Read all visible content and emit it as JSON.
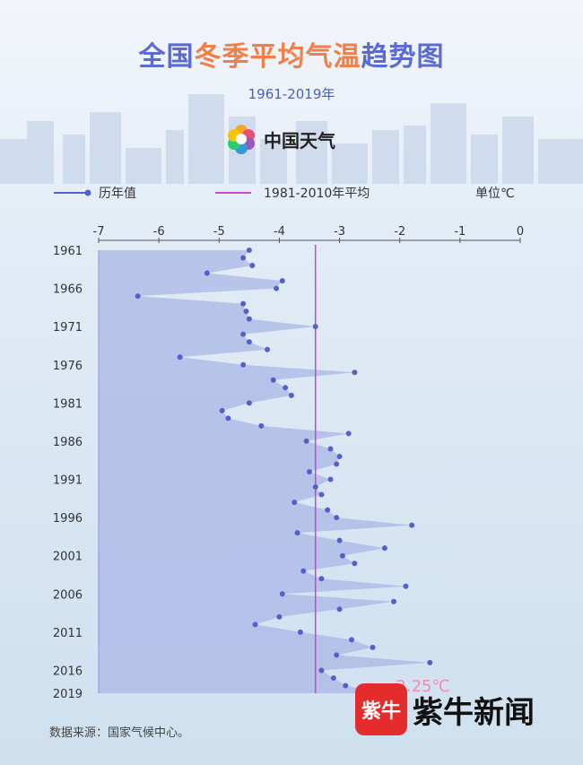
{
  "title": {
    "part1": "全国",
    "part2": "冬季平均气温",
    "part3": "趋势图"
  },
  "subtitle": "1961-2019年",
  "brand": {
    "name": "中国天气",
    "icon": "rainbow-swirl-icon"
  },
  "legend": {
    "series": "历年值",
    "reference": "1981-2010年平均",
    "unit": "单位℃"
  },
  "source": "数据来源：国家气候中心。",
  "logo": {
    "mark": "紫牛",
    "name": "紫牛新闻"
  },
  "colors": {
    "series": "#5561c8",
    "area": "#aab7e6",
    "reference": "#cc44cc",
    "title_accent": "#f0804a"
  },
  "chart_data": {
    "type": "area",
    "orientation": "horizontal",
    "x_ticks": [
      "-7",
      "-6",
      "-5",
      "-4",
      "-3",
      "-2",
      "-1",
      "0"
    ],
    "xlim": [
      -7,
      0
    ],
    "y_ticks": [
      "1961",
      "1966",
      "1971",
      "1976",
      "1981",
      "1986",
      "1991",
      "1996",
      "2001",
      "2006",
      "2011",
      "2016",
      "2019"
    ],
    "ylim": [
      1961,
      2019
    ],
    "reference_value": -3.4,
    "annotation": "-2.25℃",
    "series": [
      {
        "name": "历年值",
        "x": [
          1961,
          1962,
          1963,
          1964,
          1965,
          1966,
          1967,
          1968,
          1969,
          1970,
          1971,
          1972,
          1973,
          1974,
          1975,
          1976,
          1977,
          1978,
          1979,
          1980,
          1981,
          1982,
          1983,
          1984,
          1985,
          1986,
          1987,
          1988,
          1989,
          1990,
          1991,
          1992,
          1993,
          1994,
          1995,
          1996,
          1997,
          1998,
          1999,
          2000,
          2001,
          2002,
          2003,
          2004,
          2005,
          2006,
          2007,
          2008,
          2009,
          2010,
          2011,
          2012,
          2013,
          2014,
          2015,
          2016,
          2017,
          2018,
          2019
        ],
        "values": [
          -4.5,
          -4.6,
          -4.45,
          -5.2,
          -3.95,
          -4.05,
          -6.35,
          -4.6,
          -4.55,
          -4.5,
          -3.4,
          -4.6,
          -4.5,
          -4.2,
          -5.65,
          -4.6,
          -2.75,
          -4.1,
          -3.9,
          -3.8,
          -4.5,
          -4.95,
          -4.85,
          -4.3,
          -2.85,
          -3.55,
          -3.15,
          -3.0,
          -3.05,
          -3.5,
          -3.15,
          -3.4,
          -3.3,
          -3.75,
          -3.2,
          -3.05,
          -1.8,
          -3.7,
          -3.0,
          -2.25,
          -2.95,
          -2.75,
          -3.6,
          -3.3,
          -1.9,
          -3.95,
          -2.1,
          -3.0,
          -4.0,
          -4.4,
          -3.65,
          -2.8,
          -2.45,
          -3.05,
          -1.5,
          -3.3,
          -3.1,
          -2.9,
          -2.25
        ]
      }
    ]
  }
}
